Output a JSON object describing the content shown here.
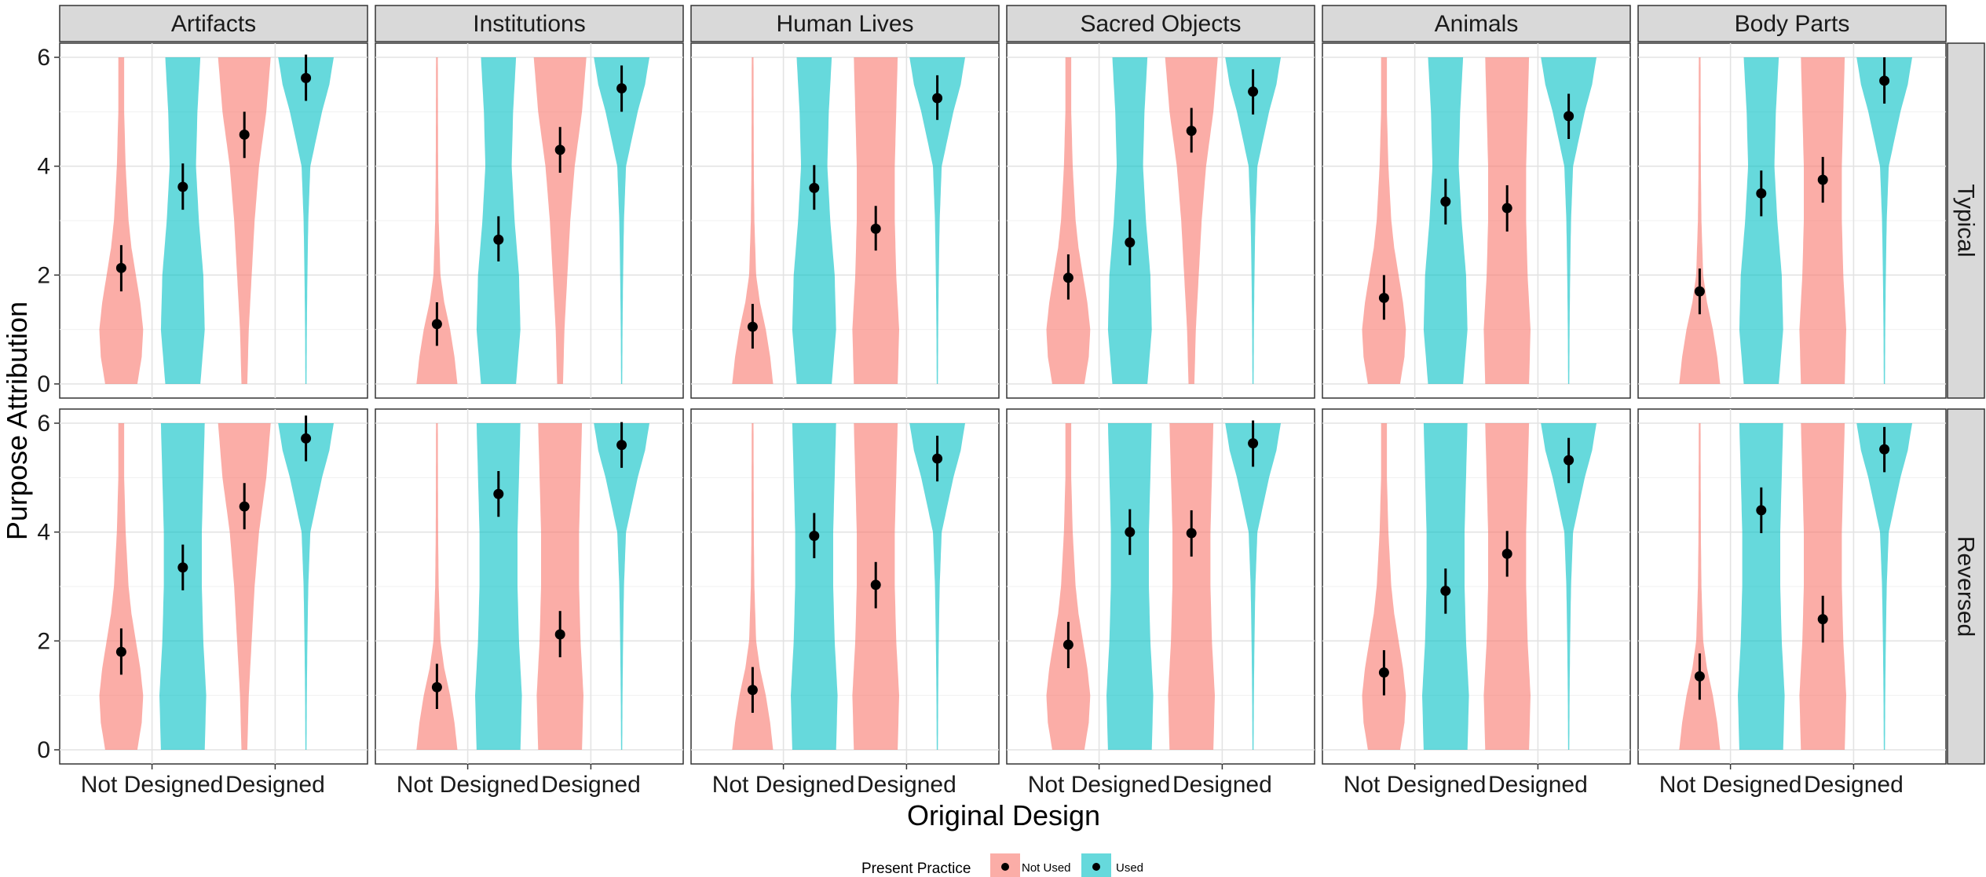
{
  "chart_data": {
    "type": "violin",
    "facets_columns": [
      "Artifacts",
      "Institutions",
      "Human Lives",
      "Sacred Objects",
      "Animals",
      "Body Parts"
    ],
    "facets_rows": [
      "Typical",
      "Reversed"
    ],
    "x_categories": [
      "Not Designed",
      "Designed"
    ],
    "xlabel": "Original Design",
    "ylabel": "Purpose Attribution",
    "ylim": [
      0,
      6
    ],
    "yticks": [
      "0",
      "2",
      "4",
      "6"
    ],
    "grid": true,
    "legend": {
      "title": "Present Practice",
      "position": "bottom",
      "entries": [
        {
          "name": "Not Used",
          "color": "#F8766D"
        },
        {
          "name": "Used",
          "color": "#00BFC4"
        }
      ]
    },
    "series_colors": {
      "Not Used": "#F8766D",
      "Used": "#00BFC4"
    },
    "point_estimates": {
      "Typical": {
        "Artifacts": {
          "Not Designed": {
            "Not Used": [
              2.13,
              1.7,
              2.55
            ],
            "Used": [
              3.62,
              3.2,
              4.05
            ]
          },
          "Designed": {
            "Not Used": [
              4.58,
              4.15,
              5.0
            ],
            "Used": [
              5.62,
              5.2,
              6.05
            ]
          }
        },
        "Institutions": {
          "Not Designed": {
            "Not Used": [
              1.1,
              0.7,
              1.5
            ],
            "Used": [
              2.65,
              2.25,
              3.08
            ]
          },
          "Designed": {
            "Not Used": [
              4.3,
              3.88,
              4.72
            ],
            "Used": [
              5.43,
              5.0,
              5.85
            ]
          }
        },
        "Human Lives": {
          "Not Designed": {
            "Not Used": [
              1.05,
              0.65,
              1.47
            ],
            "Used": [
              3.6,
              3.2,
              4.02
            ]
          },
          "Designed": {
            "Not Used": [
              2.85,
              2.45,
              3.27
            ],
            "Used": [
              5.25,
              4.85,
              5.67
            ]
          }
        },
        "Sacred Objects": {
          "Not Designed": {
            "Not Used": [
              1.95,
              1.55,
              2.38
            ],
            "Used": [
              2.6,
              2.18,
              3.02
            ]
          },
          "Designed": {
            "Not Used": [
              4.65,
              4.25,
              5.07
            ]
          },
          "Used": [
            5.37,
            4.95,
            5.78
          ]
        },
        "Animals": {
          "Not Designed": {
            "Not Used": [
              1.58,
              1.18,
              2.0
            ],
            "Used": [
              3.35,
              2.93,
              3.77
            ]
          },
          "Designed": {
            "Not Used": [
              3.23,
              2.8,
              3.65
            ],
            "Used": [
              4.92,
              4.5,
              5.33
            ]
          }
        },
        "Body Parts": {
          "Not Designed": {
            "Not Used": [
              1.7,
              1.28,
              2.12
            ],
            "Used": [
              3.5,
              3.08,
              3.92
            ]
          },
          "Designed": {
            "Not Used": [
              3.75,
              3.33,
              4.17
            ],
            "Used": [
              5.57,
              5.15,
              6.0
            ]
          }
        }
      },
      "Reversed": {
        "Artifacts": {
          "Not Designed": {
            "Not Used": [
              1.8,
              1.38,
              2.23
            ],
            "Used": [
              3.35,
              2.93,
              3.77
            ]
          },
          "Designed": {
            "Not Used": [
              4.47,
              4.05,
              4.9
            ],
            "Used": [
              5.72,
              5.3,
              6.14
            ]
          }
        },
        "Institutions": {
          "Not Designed": {
            "Not Used": [
              1.15,
              0.75,
              1.58
            ],
            "Used": [
              4.7,
              4.28,
              5.12
            ]
          },
          "Designed": {
            "Not Used": [
              2.12,
              1.7,
              2.55
            ],
            "Used": [
              5.6,
              5.18,
              6.02
            ]
          }
        },
        "Human Lives": {
          "Not Designed": {
            "Not Used": [
              1.1,
              0.68,
              1.52
            ],
            "Used": [
              3.93,
              3.52,
              4.35
            ]
          },
          "Designed": {
            "Not Used": [
              3.03,
              2.6,
              3.45
            ],
            "Used": [
              5.35,
              4.93,
              5.77
            ]
          }
        },
        "Sacred Objects": {
          "Not Designed": {
            "Not Used": [
              1.93,
              1.5,
              2.35
            ],
            "Used": [
              4.0,
              3.58,
              4.42
            ]
          },
          "Designed": {
            "Not Used": [
              3.98,
              3.55,
              4.4
            ],
            "Used": [
              5.63,
              5.2,
              6.05
            ]
          }
        },
        "Animals": {
          "Not Designed": {
            "Not Used": [
              1.42,
              1.0,
              1.83
            ],
            "Used": [
              2.92,
              2.5,
              3.33
            ]
          },
          "Designed": {
            "Not Used": [
              3.6,
              3.18,
              4.02
            ],
            "Used": [
              5.32,
              4.9,
              5.73
            ]
          }
        },
        "Body Parts": {
          "Not Designed": {
            "Not Used": [
              1.35,
              0.92,
              1.77
            ],
            "Used": [
              4.4,
              3.98,
              4.82
            ]
          },
          "Designed": {
            "Not Used": [
              2.4,
              1.97,
              2.83
            ],
            "Used": [
              5.52,
              5.1,
              5.93
            ]
          }
        }
      }
    },
    "violin_profiles": {
      "wide_low": [
        [
          0,
          0.55
        ],
        [
          0.5,
          0.7
        ],
        [
          1.0,
          0.75
        ],
        [
          1.5,
          0.65
        ],
        [
          2.0,
          0.5
        ],
        [
          2.5,
          0.35
        ],
        [
          3.0,
          0.25
        ],
        [
          3.5,
          0.2
        ],
        [
          4.0,
          0.15
        ],
        [
          5.0,
          0.1
        ],
        [
          6,
          0.1
        ]
      ],
      "narrow_bottom": [
        [
          0,
          0.7
        ],
        [
          0.5,
          0.6
        ],
        [
          1.0,
          0.45
        ],
        [
          1.5,
          0.25
        ],
        [
          2.0,
          0.12
        ],
        [
          3.0,
          0.06
        ],
        [
          4.0,
          0.04
        ],
        [
          6,
          0.03
        ]
      ],
      "wide_used_low": [
        [
          0,
          0.6
        ],
        [
          1.0,
          0.75
        ],
        [
          2.0,
          0.7
        ],
        [
          3.0,
          0.55
        ],
        [
          4.0,
          0.45
        ],
        [
          5.0,
          0.5
        ],
        [
          6,
          0.6
        ]
      ],
      "top_heavy": [
        [
          0,
          0.1
        ],
        [
          1.0,
          0.15
        ],
        [
          2.0,
          0.25
        ],
        [
          3.0,
          0.35
        ],
        [
          4.0,
          0.5
        ],
        [
          5.0,
          0.75
        ],
        [
          6,
          0.9
        ]
      ],
      "very_top": [
        [
          0,
          0.02
        ],
        [
          1.0,
          0.03
        ],
        [
          2.0,
          0.05
        ],
        [
          3.0,
          0.08
        ],
        [
          4.0,
          0.15
        ],
        [
          5.0,
          0.55
        ],
        [
          5.5,
          0.8
        ],
        [
          6,
          0.95
        ]
      ],
      "uniform": [
        [
          0,
          0.75
        ],
        [
          1.0,
          0.8
        ],
        [
          2.0,
          0.7
        ],
        [
          3.0,
          0.65
        ],
        [
          4.0,
          0.65
        ],
        [
          5.0,
          0.7
        ],
        [
          6,
          0.75
        ]
      ]
    }
  }
}
